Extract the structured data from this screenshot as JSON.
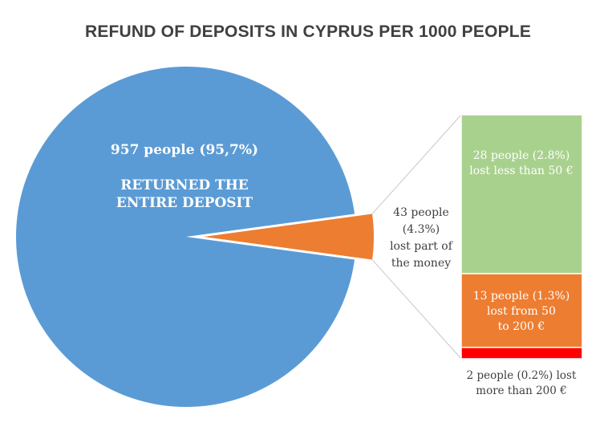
{
  "chart_data": {
    "type": "bar-of-pie",
    "title": "REFUND OF DEPOSITS IN CYPRUS PER 1000 PEOPLE",
    "pie": {
      "slices": [
        {
          "label_line1": "957 people (95,7%)",
          "label_line2": "RETURNED THE",
          "label_line3": "ENTIRE DEPOSIT",
          "value": 957,
          "percent": 95.7,
          "color": "#5b9bd5"
        },
        {
          "label_line1": "43 people",
          "label_line2": "(4.3%)",
          "label_line3": "lost part of",
          "label_line4": "the money",
          "value": 43,
          "percent": 4.3,
          "color": "#ed7d31"
        }
      ]
    },
    "bar": {
      "segments": [
        {
          "label_line1": "28 people (2.8%)",
          "label_line2": "lost less than 50 €",
          "value": 28,
          "percent": 2.8,
          "color": "#a9d18e"
        },
        {
          "label_line1": "13 people (1.3%)",
          "label_line2": "lost from 50",
          "label_line3": "to 200 €",
          "value": 13,
          "percent": 1.3,
          "color": "#ed7d31"
        },
        {
          "label_line1": "2 people (0.2%) lost",
          "label_line2": "more than 200 €",
          "value": 2,
          "percent": 0.2,
          "color": "#ff0000"
        }
      ]
    }
  }
}
